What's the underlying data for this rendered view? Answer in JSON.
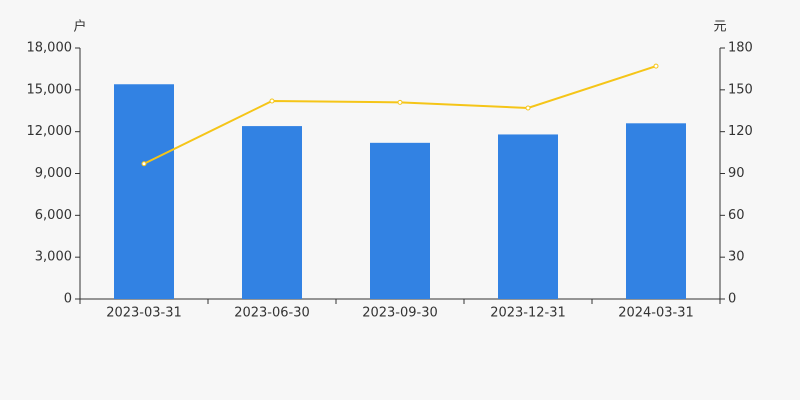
{
  "chart_data": {
    "type": "bar",
    "y_label": "户",
    "y2_label": "元",
    "categories": [
      "2023-03-31",
      "2023-06-30",
      "2023-09-30",
      "2023-12-31",
      "2024-03-31"
    ],
    "series": [
      {
        "type": "bar",
        "color": "#3282e3",
        "values": [
          15400,
          12400,
          11200,
          11800,
          12600
        ]
      },
      {
        "type": "line",
        "axis": "y2",
        "color": "#f5c518",
        "values": [
          97,
          142,
          141,
          137,
          167
        ]
      }
    ],
    "ylim": [
      0,
      18000
    ],
    "yticks": [
      0,
      {
        "value": 3000,
        "label": "3,000"
      },
      {
        "value": 6000,
        "label": "6,000"
      },
      {
        "value": 9000,
        "label": "9,000"
      },
      {
        "value": 12000,
        "label": "12,000"
      },
      {
        "value": 15000,
        "label": "15,000"
      },
      {
        "value": 18000,
        "label": "18,000"
      }
    ],
    "y2lim": [
      0,
      180
    ],
    "y2ticks": [
      0,
      30,
      60,
      90,
      120,
      150,
      180
    ],
    "grid": false
  }
}
